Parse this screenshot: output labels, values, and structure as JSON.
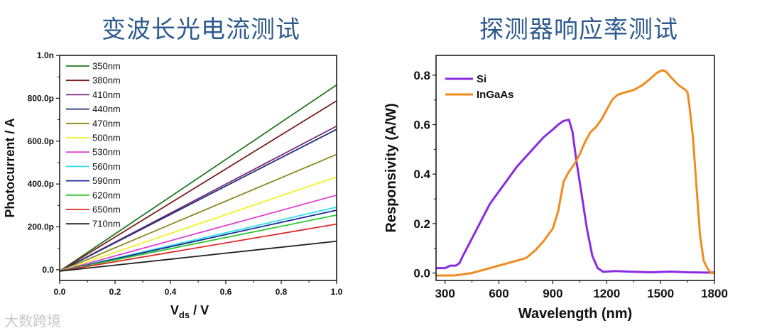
{
  "titles": {
    "left": "变波长光电流测试",
    "right": "探测器响应率测试"
  },
  "watermark": "大数跨境",
  "chart_data": [
    {
      "type": "line",
      "title": "变波长光电流测试",
      "xlabel_main": "V",
      "xlabel_sub": "ds",
      "xlabel_tail": " / V",
      "ylabel": "Photocurrent / A",
      "xlim": [
        0,
        1.0
      ],
      "ylim": [
        -5e-11,
        1e-09
      ],
      "x_ticks": [
        "0.0",
        "0.2",
        "0.4",
        "0.6",
        "0.8",
        "1.0"
      ],
      "y_ticks": [
        {
          "v": 0,
          "label": "0.0"
        },
        {
          "v": 2e-10,
          "label": "200.0p"
        },
        {
          "v": 4e-10,
          "label": "400.0p"
        },
        {
          "v": 6e-10,
          "label": "600.0p"
        },
        {
          "v": 8e-10,
          "label": "800.0p"
        },
        {
          "v": 1e-09,
          "label": "1.0n"
        }
      ],
      "legend_position": "top-left",
      "series": [
        {
          "name": "350nm",
          "color": "#1f7a1f",
          "y_at_1V": 8.62e-10
        },
        {
          "name": "380nm",
          "color": "#7a1f1f",
          "y_at_1V": 7.88e-10
        },
        {
          "name": "410nm",
          "color": "#7b2a7b",
          "y_at_1V": 6.7e-10
        },
        {
          "name": "440nm",
          "color": "#1e2f7a",
          "y_at_1V": 6.55e-10
        },
        {
          "name": "470nm",
          "color": "#8a8a22",
          "y_at_1V": 5.38e-10
        },
        {
          "name": "500nm",
          "color": "#f2f22a",
          "y_at_1V": 4.33e-10
        },
        {
          "name": "530nm",
          "color": "#e040d0",
          "y_at_1V": 3.48e-10
        },
        {
          "name": "560nm",
          "color": "#30e0e8",
          "y_at_1V": 2.92e-10
        },
        {
          "name": "590nm",
          "color": "#1a2a9a",
          "y_at_1V": 2.78e-10
        },
        {
          "name": "620nm",
          "color": "#30c830",
          "y_at_1V": 2.55e-10
        },
        {
          "name": "650nm",
          "color": "#e02a2a",
          "y_at_1V": 2.13e-10
        },
        {
          "name": "710nm",
          "color": "#222222",
          "y_at_1V": 1.33e-10
        }
      ]
    },
    {
      "type": "line",
      "title": "探测器响应率测试",
      "xlabel": "Wavelength (nm)",
      "ylabel": "Responsivity (A/W)",
      "xlim": [
        250,
        1800
      ],
      "ylim": [
        -0.03,
        0.88
      ],
      "x_ticks": [
        "300",
        "600",
        "900",
        "1200",
        "1500",
        "1800"
      ],
      "y_ticks": [
        "0.0",
        "0.2",
        "0.4",
        "0.6",
        "0.8"
      ],
      "legend_position": "top-left",
      "series": [
        {
          "name": "Si",
          "color": "#8a2be2",
          "x": [
            250,
            300,
            330,
            360,
            380,
            400,
            450,
            500,
            550,
            600,
            650,
            700,
            750,
            800,
            850,
            900,
            930,
            960,
            990,
            1010,
            1030,
            1060,
            1090,
            1120,
            1150,
            1180,
            1250,
            1350,
            1450,
            1550,
            1650,
            1750,
            1800
          ],
          "y": [
            0.02,
            0.02,
            0.03,
            0.03,
            0.04,
            0.07,
            0.14,
            0.21,
            0.28,
            0.33,
            0.38,
            0.43,
            0.47,
            0.51,
            0.55,
            0.58,
            0.6,
            0.615,
            0.62,
            0.57,
            0.46,
            0.32,
            0.18,
            0.07,
            0.02,
            0.005,
            0.008,
            0.005,
            0.003,
            0.006,
            0.003,
            0.002,
            0.002
          ]
        },
        {
          "name": "InGaAs",
          "color": "#f28a1e",
          "x": [
            250,
            350,
            400,
            450,
            500,
            550,
            600,
            650,
            700,
            750,
            800,
            850,
            900,
            930,
            960,
            990,
            1020,
            1050,
            1080,
            1110,
            1140,
            1170,
            1200,
            1230,
            1260,
            1300,
            1350,
            1400,
            1450,
            1480,
            1510,
            1530,
            1560,
            1600,
            1640,
            1650,
            1660,
            1680,
            1700,
            1720,
            1740,
            1760,
            1780,
            1800
          ],
          "y": [
            -0.01,
            -0.01,
            -0.005,
            0.0,
            0.01,
            0.02,
            0.03,
            0.04,
            0.05,
            0.06,
            0.09,
            0.13,
            0.18,
            0.25,
            0.37,
            0.41,
            0.44,
            0.48,
            0.53,
            0.57,
            0.59,
            0.62,
            0.66,
            0.7,
            0.72,
            0.73,
            0.74,
            0.76,
            0.79,
            0.81,
            0.82,
            0.815,
            0.79,
            0.76,
            0.74,
            0.73,
            0.68,
            0.55,
            0.35,
            0.15,
            0.05,
            0.02,
            0.0,
            0.0
          ]
        }
      ]
    }
  ]
}
